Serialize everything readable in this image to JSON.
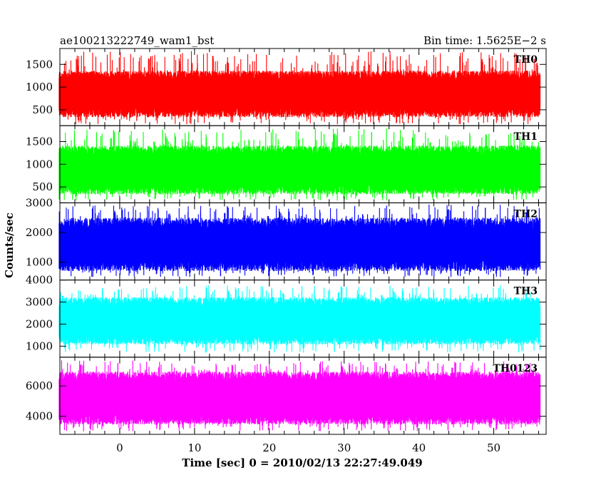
{
  "chart_data": {
    "type": "line",
    "title": "ae100213222749_wam1_bst",
    "subtitle": "Bin time: 1.5625E−2 s",
    "xlabel": "Time [sec] 0 = 2010/02/13 22:27:49.049",
    "ylabel": "Counts/sec",
    "xlim": [
      -8,
      57
    ],
    "x_ticks": [
      0,
      10,
      20,
      30,
      40,
      50
    ],
    "x_range": [
      -8.1,
      56.2
    ],
    "panels": [
      {
        "name": "TH0",
        "color": "#ff0000",
        "ylim": [
          150,
          1850
        ],
        "y_ticks": [
          500,
          1000,
          1500
        ],
        "mean": 800,
        "typical_low": 450,
        "typical_high": 1250,
        "spike_min": 180,
        "spike_max": 1800
      },
      {
        "name": "TH1",
        "color": "#00ff00",
        "ylim": [
          150,
          1850
        ],
        "y_ticks": [
          500,
          1000,
          1500
        ],
        "mean": 850,
        "typical_low": 450,
        "typical_high": 1300,
        "spike_min": 200,
        "spike_max": 1800
      },
      {
        "name": "TH2",
        "color": "#0000ff",
        "ylim": [
          400,
          3000
        ],
        "y_ticks": [
          1000,
          2000,
          3000
        ],
        "mean": 1500,
        "typical_low": 900,
        "typical_high": 2300,
        "spike_min": 500,
        "spike_max": 2950
      },
      {
        "name": "TH3",
        "color": "#00ffff",
        "ylim": [
          500,
          4000
        ],
        "y_ticks": [
          1000,
          2000,
          3000,
          4000
        ],
        "mean": 2100,
        "typical_low": 1300,
        "typical_high": 3000,
        "spike_min": 700,
        "spike_max": 3800
      },
      {
        "name": "TH0123",
        "color": "#ff00ff",
        "ylim": [
          2800,
          7900
        ],
        "y_ticks": [
          4000,
          6000
        ],
        "mean": 5200,
        "typical_low": 3800,
        "typical_high": 6600,
        "spike_min": 3000,
        "spike_max": 7700
      }
    ]
  }
}
